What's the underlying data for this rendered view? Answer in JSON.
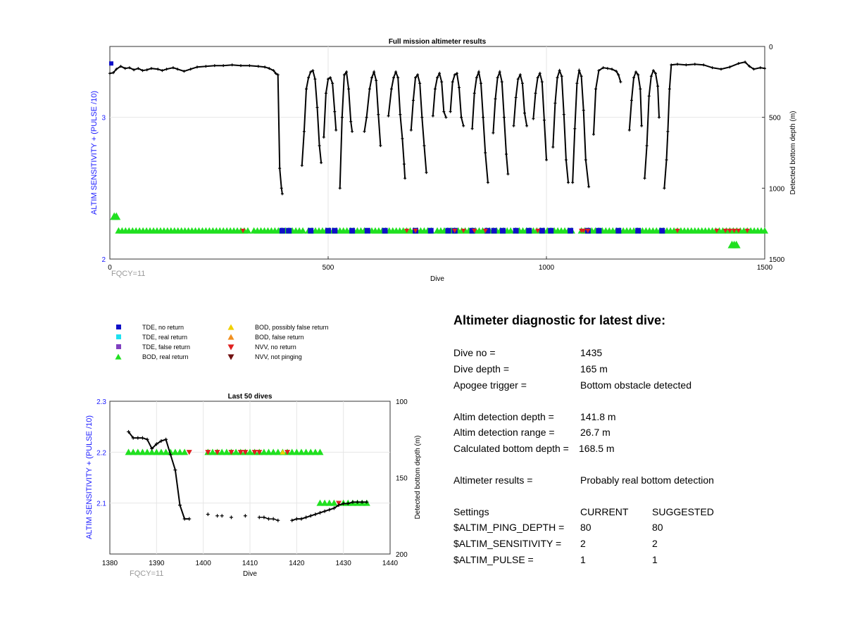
{
  "chart_data": [
    {
      "type": "scatter",
      "title": "Full mission altimeter results",
      "xlabel": "Dive",
      "ylabel_left": "ALTIM SENSITIVITY + (PULSE /10)",
      "ylabel_right": "Detected bottom depth (m)",
      "footnote": "FQCY=11",
      "xlim": [
        0,
        1500
      ],
      "ylim_left": [
        2,
        3.5
      ],
      "ylim_right": [
        1500,
        0
      ],
      "xticks": [
        "0",
        "500",
        "1000",
        "1500"
      ],
      "yticks_left": [
        "2",
        "3"
      ],
      "yticks_right": [
        "0",
        "500",
        "1000",
        "1500"
      ],
      "grid": true,
      "depth_series": [
        [
          0,
          190
        ],
        [
          8,
          185
        ],
        [
          15,
          160
        ],
        [
          25,
          140
        ],
        [
          35,
          155
        ],
        [
          45,
          150
        ],
        [
          55,
          165
        ],
        [
          65,
          155
        ],
        [
          75,
          170
        ],
        [
          85,
          165
        ],
        [
          95,
          155
        ],
        [
          110,
          160
        ],
        [
          120,
          170
        ],
        [
          130,
          160
        ],
        [
          145,
          150
        ],
        [
          155,
          160
        ],
        [
          170,
          175
        ],
        [
          185,
          160
        ],
        [
          200,
          145
        ],
        [
          220,
          140
        ],
        [
          240,
          135
        ],
        [
          260,
          135
        ],
        [
          280,
          130
        ],
        [
          300,
          135
        ],
        [
          320,
          135
        ],
        [
          340,
          140
        ],
        [
          355,
          145
        ],
        [
          365,
          155
        ],
        [
          375,
          170
        ],
        [
          380,
          190
        ],
        [
          385,
          200
        ],
        [
          389,
          860
        ],
        [
          393,
          1000
        ],
        [
          395,
          1040
        ],
        [
          400,
          null
        ],
        [
          440,
          840
        ],
        [
          445,
          600
        ],
        [
          450,
          300
        ],
        [
          455,
          220
        ],
        [
          460,
          180
        ],
        [
          465,
          170
        ],
        [
          470,
          230
        ],
        [
          475,
          430
        ],
        [
          480,
          700
        ],
        [
          484,
          820
        ],
        [
          490,
          null
        ],
        [
          490,
          640
        ],
        [
          495,
          330
        ],
        [
          500,
          230
        ],
        [
          505,
          220
        ],
        [
          510,
          260
        ],
        [
          515,
          460
        ],
        [
          518,
          590
        ],
        [
          520,
          null
        ],
        [
          527,
          1000
        ],
        [
          532,
          500
        ],
        [
          537,
          200
        ],
        [
          542,
          180
        ],
        [
          547,
          300
        ],
        [
          552,
          530
        ],
        [
          555,
          600
        ],
        [
          560,
          null
        ],
        [
          583,
          600
        ],
        [
          588,
          500
        ],
        [
          595,
          300
        ],
        [
          600,
          220
        ],
        [
          605,
          180
        ],
        [
          610,
          240
        ],
        [
          615,
          480
        ],
        [
          620,
          700
        ],
        [
          625,
          null
        ],
        [
          638,
          490
        ],
        [
          645,
          300
        ],
        [
          650,
          220
        ],
        [
          655,
          180
        ],
        [
          660,
          220
        ],
        [
          665,
          480
        ],
        [
          670,
          650
        ],
        [
          674,
          830
        ],
        [
          676,
          930
        ],
        [
          680,
          null
        ],
        [
          690,
          590
        ],
        [
          695,
          380
        ],
        [
          700,
          220
        ],
        [
          705,
          200
        ],
        [
          710,
          260
        ],
        [
          715,
          500
        ],
        [
          720,
          700
        ],
        [
          725,
          890
        ],
        [
          728,
          null
        ],
        [
          740,
          490
        ],
        [
          745,
          300
        ],
        [
          750,
          220
        ],
        [
          755,
          190
        ],
        [
          760,
          250
        ],
        [
          765,
          460
        ],
        [
          770,
          500
        ],
        [
          775,
          null
        ],
        [
          780,
          460
        ],
        [
          785,
          250
        ],
        [
          790,
          200
        ],
        [
          795,
          190
        ],
        [
          800,
          290
        ],
        [
          805,
          500
        ],
        [
          810,
          560
        ],
        [
          815,
          null
        ],
        [
          830,
          580
        ],
        [
          835,
          330
        ],
        [
          840,
          220
        ],
        [
          845,
          180
        ],
        [
          850,
          260
        ],
        [
          855,
          500
        ],
        [
          860,
          750
        ],
        [
          866,
          960
        ],
        [
          870,
          null
        ],
        [
          878,
          610
        ],
        [
          883,
          370
        ],
        [
          888,
          220
        ],
        [
          893,
          180
        ],
        [
          898,
          250
        ],
        [
          903,
          500
        ],
        [
          908,
          760
        ],
        [
          912,
          900
        ],
        [
          915,
          null
        ],
        [
          925,
          560
        ],
        [
          930,
          360
        ],
        [
          935,
          230
        ],
        [
          940,
          200
        ],
        [
          945,
          260
        ],
        [
          950,
          470
        ],
        [
          955,
          560
        ],
        [
          960,
          null
        ],
        [
          970,
          510
        ],
        [
          975,
          330
        ],
        [
          980,
          220
        ],
        [
          985,
          190
        ],
        [
          990,
          250
        ],
        [
          995,
          520
        ],
        [
          1000,
          800
        ],
        [
          1002,
          null
        ],
        [
          1015,
          710
        ],
        [
          1020,
          400
        ],
        [
          1025,
          220
        ],
        [
          1030,
          170
        ],
        [
          1035,
          210
        ],
        [
          1040,
          480
        ],
        [
          1045,
          800
        ],
        [
          1050,
          960
        ],
        [
          1053,
          null
        ],
        [
          1060,
          960
        ],
        [
          1065,
          580
        ],
        [
          1070,
          260
        ],
        [
          1075,
          170
        ],
        [
          1080,
          210
        ],
        [
          1085,
          450
        ],
        [
          1090,
          800
        ],
        [
          1097,
          990
        ],
        [
          1100,
          null
        ],
        [
          1108,
          620
        ],
        [
          1113,
          300
        ],
        [
          1120,
          170
        ],
        [
          1130,
          150
        ],
        [
          1140,
          155
        ],
        [
          1150,
          160
        ],
        [
          1160,
          175
        ],
        [
          1165,
          200
        ],
        [
          1170,
          250
        ],
        [
          1172,
          null
        ],
        [
          1190,
          590
        ],
        [
          1195,
          380
        ],
        [
          1200,
          220
        ],
        [
          1205,
          180
        ],
        [
          1210,
          200
        ],
        [
          1215,
          300
        ],
        [
          1218,
          560
        ],
        [
          1220,
          null
        ],
        [
          1225,
          930
        ],
        [
          1230,
          700
        ],
        [
          1235,
          350
        ],
        [
          1240,
          210
        ],
        [
          1245,
          170
        ],
        [
          1250,
          190
        ],
        [
          1255,
          280
        ],
        [
          1258,
          500
        ],
        [
          1260,
          null
        ],
        [
          1270,
          1000
        ],
        [
          1275,
          800
        ],
        [
          1278,
          600
        ],
        [
          1282,
          300
        ],
        [
          1286,
          130
        ],
        [
          1300,
          125
        ],
        [
          1320,
          130
        ],
        [
          1340,
          125
        ],
        [
          1360,
          130
        ],
        [
          1380,
          150
        ],
        [
          1400,
          160
        ],
        [
          1420,
          145
        ],
        [
          1440,
          120
        ],
        [
          1455,
          110
        ],
        [
          1465,
          140
        ],
        [
          1475,
          160
        ],
        [
          1490,
          150
        ],
        [
          1500,
          155
        ]
      ],
      "marker_rows": [
        {
          "name": "BOD, real return",
          "y": 2.2,
          "segments": [
            [
              20,
              320
            ],
            [
              330,
              445
            ],
            [
              455,
              590
            ],
            [
              600,
              740
            ],
            [
              750,
              920
            ],
            [
              930,
              1065
            ],
            [
              1080,
              1210
            ],
            [
              1220,
              1500
            ]
          ]
        },
        {
          "name": "TDE, no return",
          "y": 2.2,
          "points": [
            395,
            410,
            460,
            500,
            515,
            555,
            590,
            630,
            700,
            735,
            775,
            790,
            830,
            865,
            880,
            900,
            930,
            960,
            990,
            1010,
            1055,
            1095,
            1120,
            1165,
            1210,
            1265
          ]
        },
        {
          "name": "NVV, no return",
          "y": 2.2,
          "points": [
            305,
            680,
            700,
            790,
            810,
            835,
            860,
            980,
            1080,
            1085,
            1095,
            1300,
            1390,
            1410,
            1420,
            1430,
            1440,
            1460
          ]
        },
        {
          "name": "BOD, real return isolated",
          "y": 2.3,
          "points": [
            10,
            15
          ]
        },
        {
          "name": "BOD, real return tail",
          "y": 2.1,
          "points": [
            1425,
            1430,
            1435
          ]
        }
      ]
    },
    {
      "type": "scatter",
      "title": "Last 50 dives",
      "xlabel": "Dive",
      "ylabel_left": "ALTIM SENSITIVITY + (PULSE /10)",
      "ylabel_right": "Detected bottom depth (m)",
      "footnote": "FQCY=11",
      "xlim": [
        1380,
        1440
      ],
      "ylim_left": [
        2.0,
        2.3
      ],
      "ylim_right": [
        200,
        100
      ],
      "xticks": [
        "1380",
        "1390",
        "1400",
        "1410",
        "1420",
        "1430",
        "1440"
      ],
      "yticks_left": [
        "2.1",
        "2.2",
        "2.3"
      ],
      "yticks_right": [
        "100",
        "150",
        "200"
      ],
      "grid": true,
      "depth_series": [
        [
          1384,
          120
        ],
        [
          1385,
          124
        ],
        [
          1386,
          124
        ],
        [
          1387,
          124
        ],
        [
          1388,
          125
        ],
        [
          1389,
          131
        ],
        [
          1390,
          128
        ],
        [
          1391,
          126
        ],
        [
          1392,
          125
        ],
        [
          1393,
          135
        ],
        [
          1394,
          145
        ],
        [
          1395,
          168
        ],
        [
          1396,
          177
        ],
        [
          1397,
          177
        ]
      ],
      "depth_points": [
        [
          1401,
          174
        ],
        [
          1403,
          175
        ],
        [
          1404,
          175
        ],
        [
          1406,
          176
        ],
        [
          1409,
          175
        ],
        [
          1412,
          176
        ],
        [
          1413,
          176
        ],
        [
          1414,
          177
        ],
        [
          1415,
          177
        ],
        [
          1416,
          178
        ],
        [
          1419,
          178
        ],
        [
          1420,
          177
        ],
        [
          1421,
          177
        ],
        [
          1422,
          176
        ],
        [
          1423,
          175
        ],
        [
          1424,
          174
        ],
        [
          1425,
          173
        ],
        [
          1426,
          172
        ],
        [
          1427,
          171
        ],
        [
          1428,
          170
        ],
        [
          1429,
          168
        ],
        [
          1430,
          167
        ],
        [
          1431,
          167
        ],
        [
          1432,
          166
        ],
        [
          1433,
          166
        ],
        [
          1434,
          166
        ],
        [
          1435,
          166
        ]
      ],
      "bod_real_points_y22": [
        1384,
        1385,
        1386,
        1387,
        1388,
        1389,
        1390,
        1391,
        1392,
        1393,
        1394,
        1395,
        1396,
        1401,
        1402,
        1403,
        1404,
        1405,
        1406,
        1407,
        1408,
        1409,
        1410,
        1411,
        1412,
        1413,
        1414,
        1415,
        1416,
        1417,
        1418,
        1419,
        1420,
        1421,
        1422,
        1423,
        1424,
        1425
      ],
      "nvv_points_y22": [
        1397,
        1401,
        1403,
        1406,
        1408,
        1409,
        1411,
        1412,
        1418
      ],
      "bod_possibly_false_y22": [
        1417
      ],
      "bod_real_points_y21": [
        1425,
        1426,
        1427,
        1428,
        1430,
        1431,
        1432,
        1433,
        1434,
        1435
      ],
      "nvv_points_y21": [
        1429
      ]
    }
  ],
  "legend": [
    {
      "label": "TDE, no return",
      "color": "#1010c8",
      "shape": "square"
    },
    {
      "label": "TDE, real return",
      "color": "#1ee0f0",
      "shape": "square"
    },
    {
      "label": "TDE, false return",
      "color": "#8040c0",
      "shape": "square"
    },
    {
      "label": "BOD, real return",
      "color": "#20e020",
      "shape": "triangle-up"
    },
    {
      "label": "BOD, possibly false return",
      "color": "#f0d000",
      "shape": "triangle-up"
    },
    {
      "label": "BOD, false return",
      "color": "#f09020",
      "shape": "triangle-up"
    },
    {
      "label": "NVV, no return",
      "color": "#e02020",
      "shape": "triangle-down"
    },
    {
      "label": "NVV, not pinging",
      "color": "#701010",
      "shape": "triangle-down"
    }
  ],
  "diagnostic": {
    "title": "Altimeter diagnostic for latest dive:",
    "rows": [
      {
        "label": "Dive no =",
        "value": "1435"
      },
      {
        "label": "Dive depth =",
        "value": "165 m"
      },
      {
        "label": "Apogee trigger =",
        "value": "Bottom obstacle detected"
      },
      {
        "label": "Altim detection depth =",
        "value": "141.8 m"
      },
      {
        "label": "Altim detection range =",
        "value": "26.7 m"
      },
      {
        "label": "Calculated bottom depth =",
        "value": "168.5 m"
      },
      {
        "label": "Altimeter results =",
        "value": "Probably real bottom detection"
      }
    ],
    "settings_header": {
      "label": "Settings",
      "current": "CURRENT",
      "suggested": "SUGGESTED"
    },
    "settings": [
      {
        "label": "$ALTIM_PING_DEPTH =",
        "current": "80",
        "suggested": "80"
      },
      {
        "label": "$ALTIM_SENSITIVITY =",
        "current": "2",
        "suggested": "2"
      },
      {
        "label": "$ALTIM_PULSE =",
        "current": "1",
        "suggested": "1"
      }
    ]
  },
  "colors": {
    "axis_label_left": "#1a1aff",
    "grid": "#e6e6e6",
    "depth_line": "#000000",
    "bod_real": "#20e020",
    "tde_no": "#1010c8",
    "nvv_no": "#e02020",
    "bod_possibly_false": "#f0d000",
    "footnote": "#999999"
  }
}
